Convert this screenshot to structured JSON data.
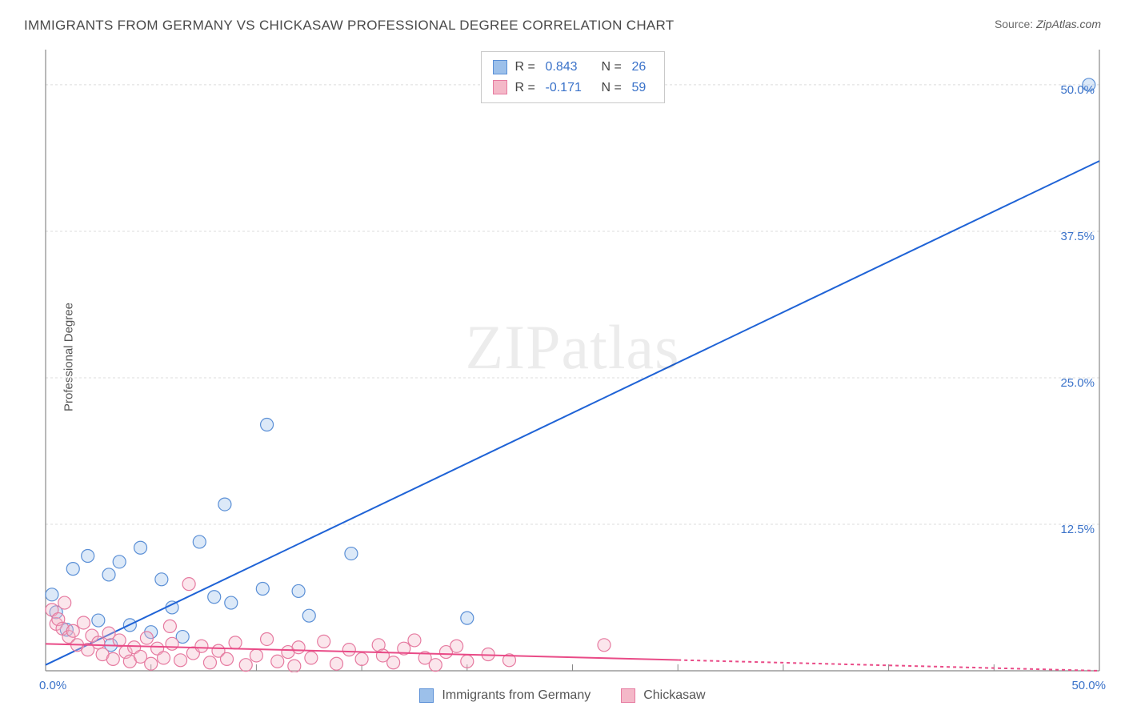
{
  "title": "IMMIGRANTS FROM GERMANY VS CHICKASAW PROFESSIONAL DEGREE CORRELATION CHART",
  "source_label": "Source: ",
  "source_link": "ZipAtlas.com",
  "ylabel": "Professional Degree",
  "watermark_a": "ZIP",
  "watermark_b": "atlas",
  "chart": {
    "type": "scatter",
    "xlim": [
      0,
      50
    ],
    "ylim": [
      0,
      53
    ],
    "xtick_labels": [
      {
        "v": 0,
        "label": "0.0%"
      },
      {
        "v": 50,
        "label": "50.0%"
      }
    ],
    "ytick_labels": [
      {
        "v": 12.5,
        "label": "12.5%"
      },
      {
        "v": 25.0,
        "label": "25.0%"
      },
      {
        "v": 37.5,
        "label": "37.5%"
      },
      {
        "v": 50.0,
        "label": "50.0%"
      }
    ],
    "grid_xticks": [
      5,
      10,
      15,
      20,
      25,
      30,
      35,
      40,
      45,
      50
    ],
    "grid_yticks": [
      12.5,
      25,
      37.5,
      50
    ],
    "axis_color": "#888888",
    "grid_color": "#dcdcdc",
    "tick_text_color_x": "#3a72c9",
    "tick_text_color_y": "#3a72c9",
    "background_color": "#ffffff",
    "marker_radius": 8,
    "marker_fill_opacity": 0.35,
    "marker_stroke_width": 1.2,
    "series": [
      {
        "name": "Immigrants from Germany",
        "color_fill": "#9cc0ea",
        "color_stroke": "#5a8fd6",
        "line_color": "#1f63d6",
        "line_width": 2,
        "line_dash": "none",
        "trend": {
          "x1": 0,
          "y1": 0.5,
          "x2": 50,
          "y2": 43.5
        },
        "r_value": "0.843",
        "n_value": "26",
        "points": [
          [
            49.5,
            50.0
          ],
          [
            10.5,
            21.0
          ],
          [
            8.5,
            14.2
          ],
          [
            7.3,
            11.0
          ],
          [
            14.5,
            10.0
          ],
          [
            3.5,
            9.3
          ],
          [
            1.3,
            8.7
          ],
          [
            3.0,
            8.2
          ],
          [
            5.5,
            7.8
          ],
          [
            10.3,
            7.0
          ],
          [
            12.0,
            6.8
          ],
          [
            8.0,
            6.3
          ],
          [
            8.8,
            5.8
          ],
          [
            6.0,
            5.4
          ],
          [
            0.5,
            5.0
          ],
          [
            12.5,
            4.7
          ],
          [
            20.0,
            4.5
          ],
          [
            2.5,
            4.3
          ],
          [
            4.0,
            3.9
          ],
          [
            1.0,
            3.5
          ],
          [
            5.0,
            3.3
          ],
          [
            6.5,
            2.9
          ],
          [
            3.1,
            2.2
          ],
          [
            0.3,
            6.5
          ],
          [
            2.0,
            9.8
          ],
          [
            4.5,
            10.5
          ]
        ]
      },
      {
        "name": "Chickasaw",
        "color_fill": "#f4b8c8",
        "color_stroke": "#e67aa0",
        "line_color": "#e94b87",
        "line_width": 2,
        "line_dash_solid_until": 30,
        "line_dash": "4 4",
        "trend": {
          "x1": 0,
          "y1": 2.3,
          "x2": 50,
          "y2": 0.0
        },
        "r_value": "-0.171",
        "n_value": "59",
        "points": [
          [
            0.3,
            5.2
          ],
          [
            0.5,
            4.0
          ],
          [
            0.6,
            4.4
          ],
          [
            0.8,
            3.6
          ],
          [
            0.9,
            5.8
          ],
          [
            1.1,
            2.9
          ],
          [
            1.3,
            3.4
          ],
          [
            1.5,
            2.2
          ],
          [
            1.8,
            4.1
          ],
          [
            2.0,
            1.8
          ],
          [
            2.2,
            3.0
          ],
          [
            2.5,
            2.4
          ],
          [
            2.7,
            1.4
          ],
          [
            3.0,
            3.2
          ],
          [
            3.2,
            1.0
          ],
          [
            3.5,
            2.6
          ],
          [
            3.8,
            1.6
          ],
          [
            4.0,
            0.8
          ],
          [
            4.2,
            2.0
          ],
          [
            4.5,
            1.2
          ],
          [
            4.8,
            2.8
          ],
          [
            5.0,
            0.6
          ],
          [
            5.3,
            1.9
          ],
          [
            5.6,
            1.1
          ],
          [
            6.0,
            2.3
          ],
          [
            6.4,
            0.9
          ],
          [
            6.8,
            7.4
          ],
          [
            7.0,
            1.5
          ],
          [
            7.4,
            2.1
          ],
          [
            7.8,
            0.7
          ],
          [
            8.2,
            1.7
          ],
          [
            8.6,
            1.0
          ],
          [
            9.0,
            2.4
          ],
          [
            9.5,
            0.5
          ],
          [
            10.0,
            1.3
          ],
          [
            10.5,
            2.7
          ],
          [
            11.0,
            0.8
          ],
          [
            11.5,
            1.6
          ],
          [
            12.0,
            2.0
          ],
          [
            12.6,
            1.1
          ],
          [
            13.2,
            2.5
          ],
          [
            13.8,
            0.6
          ],
          [
            14.4,
            1.8
          ],
          [
            15.0,
            1.0
          ],
          [
            15.8,
            2.2
          ],
          [
            16.0,
            1.3
          ],
          [
            16.5,
            0.7
          ],
          [
            17.0,
            1.9
          ],
          [
            17.5,
            2.6
          ],
          [
            18.0,
            1.1
          ],
          [
            18.5,
            0.5
          ],
          [
            19.0,
            1.6
          ],
          [
            19.5,
            2.1
          ],
          [
            20.0,
            0.8
          ],
          [
            21.0,
            1.4
          ],
          [
            22.0,
            0.9
          ],
          [
            26.5,
            2.2
          ],
          [
            11.8,
            0.4
          ],
          [
            5.9,
            3.8
          ]
        ]
      }
    ]
  },
  "legend_top": [
    {
      "color_fill": "#9cc0ea",
      "color_stroke": "#5a8fd6",
      "r": "0.843",
      "n": "26",
      "value_color": "#3a72c9"
    },
    {
      "color_fill": "#f4b8c8",
      "color_stroke": "#e67aa0",
      "r": "-0.171",
      "n": "59",
      "value_color": "#3a72c9"
    }
  ],
  "legend_bottom": [
    {
      "color_fill": "#9cc0ea",
      "color_stroke": "#5a8fd6",
      "label": "Immigrants from Germany"
    },
    {
      "color_fill": "#f4b8c8",
      "color_stroke": "#e67aa0",
      "label": "Chickasaw"
    }
  ],
  "labels": {
    "R_eq": "R = ",
    "N_eq": "N = "
  }
}
